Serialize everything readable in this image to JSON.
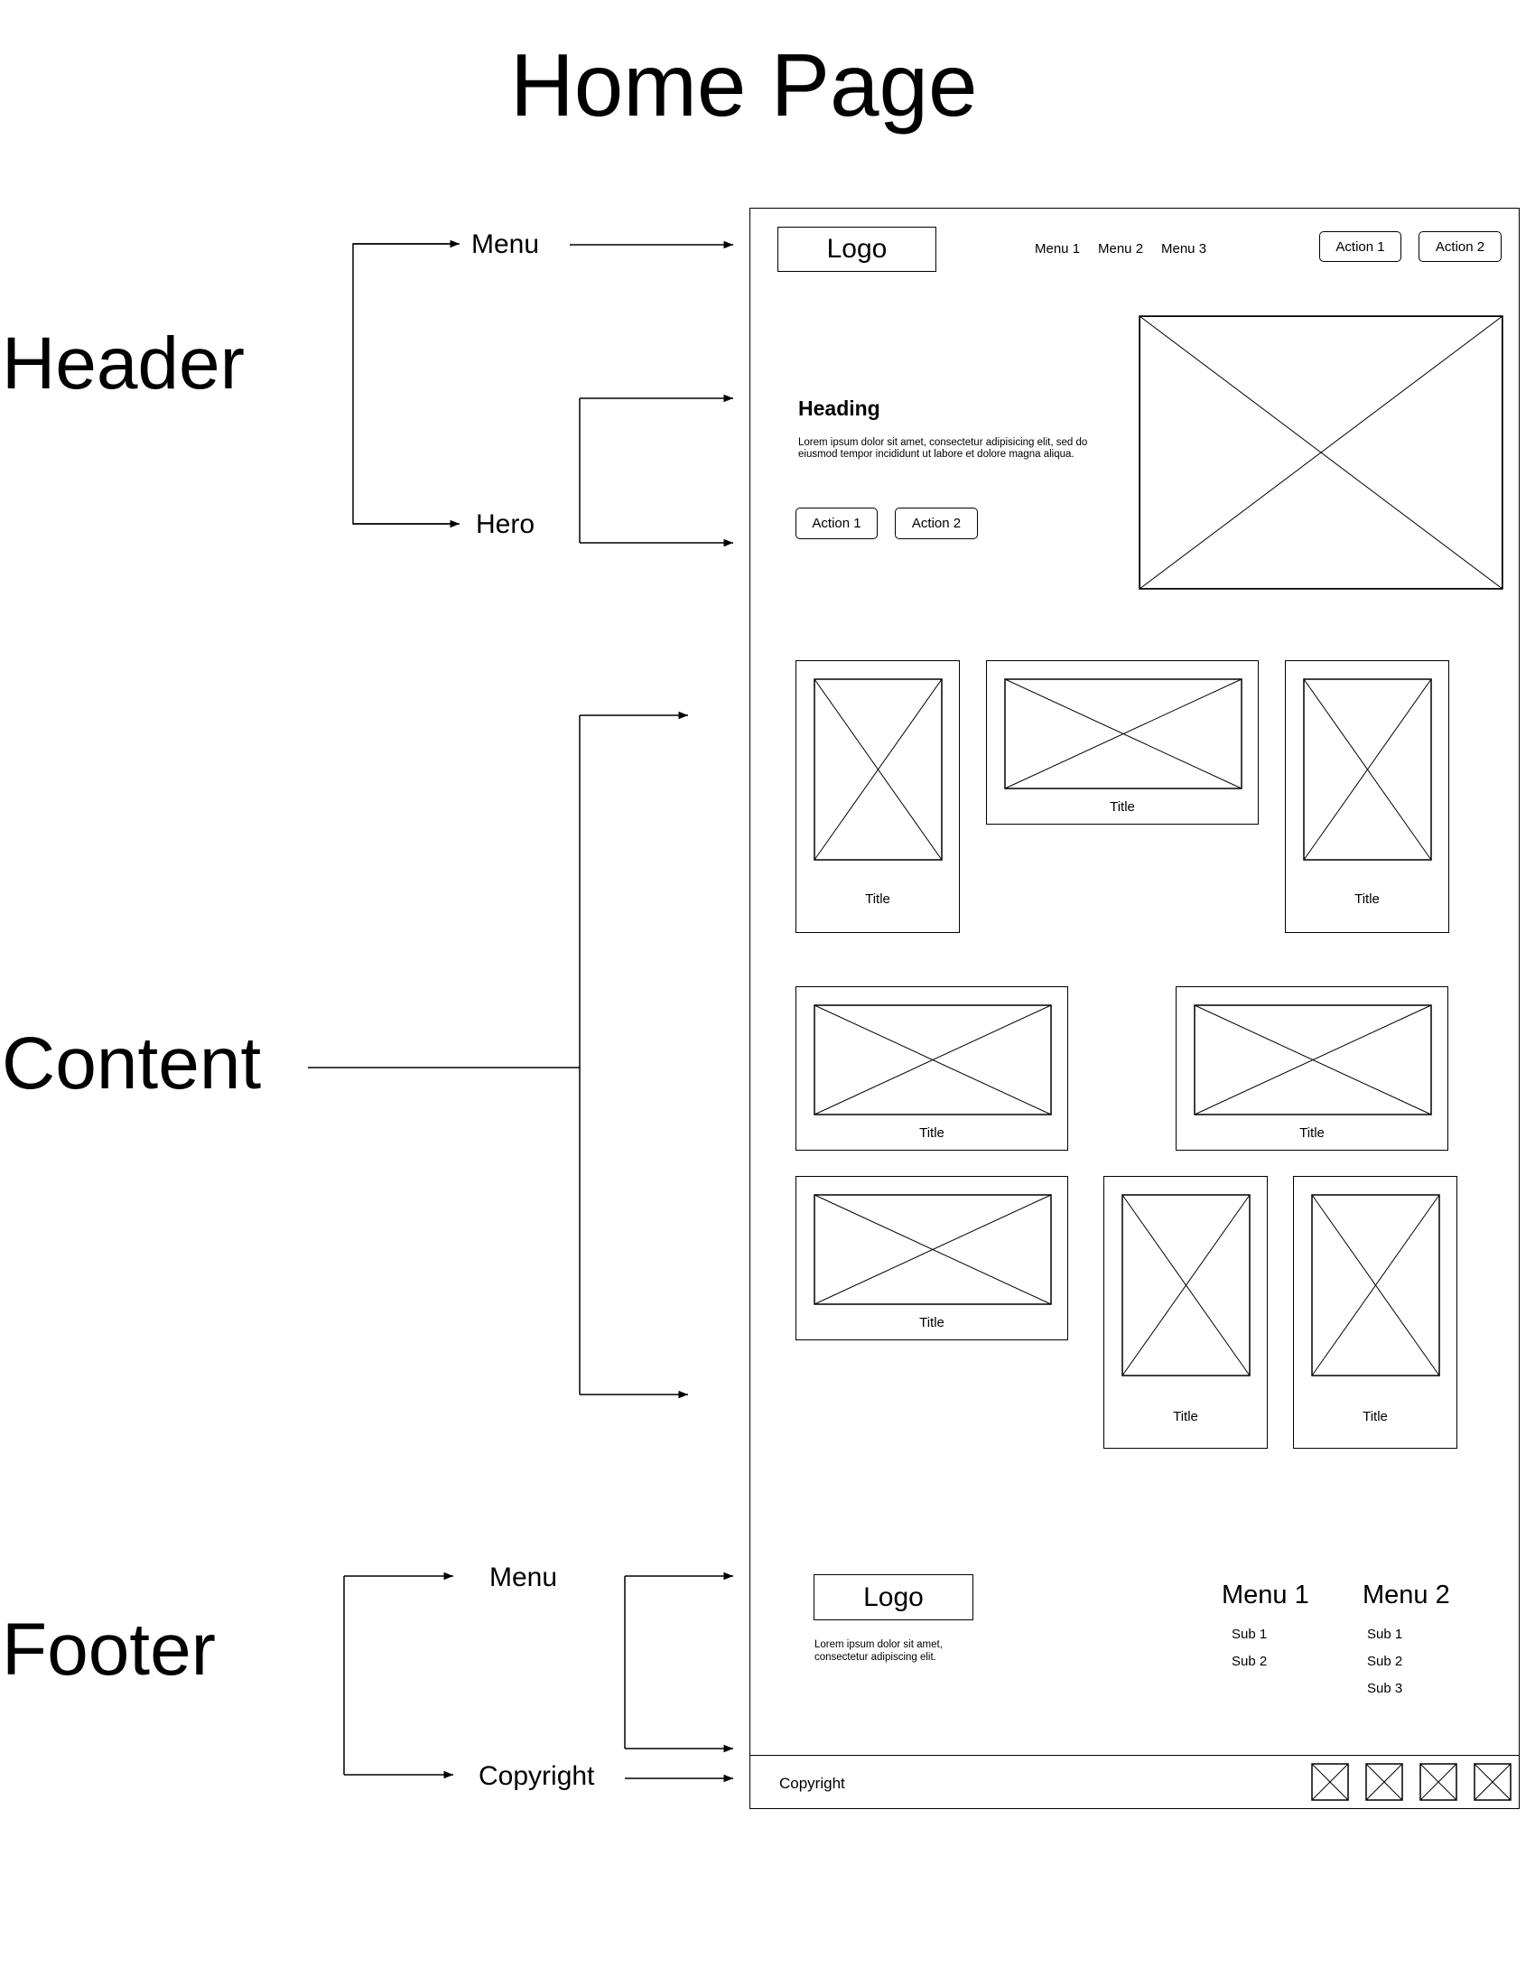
{
  "title": "Home Page",
  "sections": {
    "header": "Header",
    "content": "Content",
    "footer": "Footer"
  },
  "sublabels": {
    "header_menu": "Menu",
    "hero": "Hero",
    "footer_menu": "Menu",
    "copyright": "Copyright"
  },
  "wireframe": {
    "header": {
      "logo": "Logo",
      "nav": [
        "Menu 1",
        "Menu 2",
        "Menu 3"
      ],
      "actions": [
        "Action 1",
        "Action 2"
      ]
    },
    "hero": {
      "heading": "Heading",
      "body": [
        "Lorem ipsum dolor sit amet, consectetur adipisicing elit, sed do",
        "eiusmod tempor incididunt ut labore et dolore magna aliqua."
      ],
      "actions": [
        "Action 1",
        "Action 2"
      ]
    },
    "cards": [
      {
        "title": "Title"
      },
      {
        "title": "Title"
      },
      {
        "title": "Title"
      },
      {
        "title": "Title"
      },
      {
        "title": "Title"
      },
      {
        "title": "Title"
      },
      {
        "title": "Title"
      },
      {
        "title": "Title"
      }
    ],
    "footer": {
      "logo": "Logo",
      "text": [
        "Lorem ipsum dolor sit amet,",
        "consectetur adipiscing elit."
      ],
      "menus": [
        {
          "title": "Menu 1",
          "items": [
            "Sub 1",
            "Sub 2"
          ]
        },
        {
          "title": "Menu 2",
          "items": [
            "Sub 1",
            "Sub 2",
            "Sub 3"
          ]
        }
      ],
      "copyright": "Copyright",
      "social_icon_count": 4
    }
  }
}
